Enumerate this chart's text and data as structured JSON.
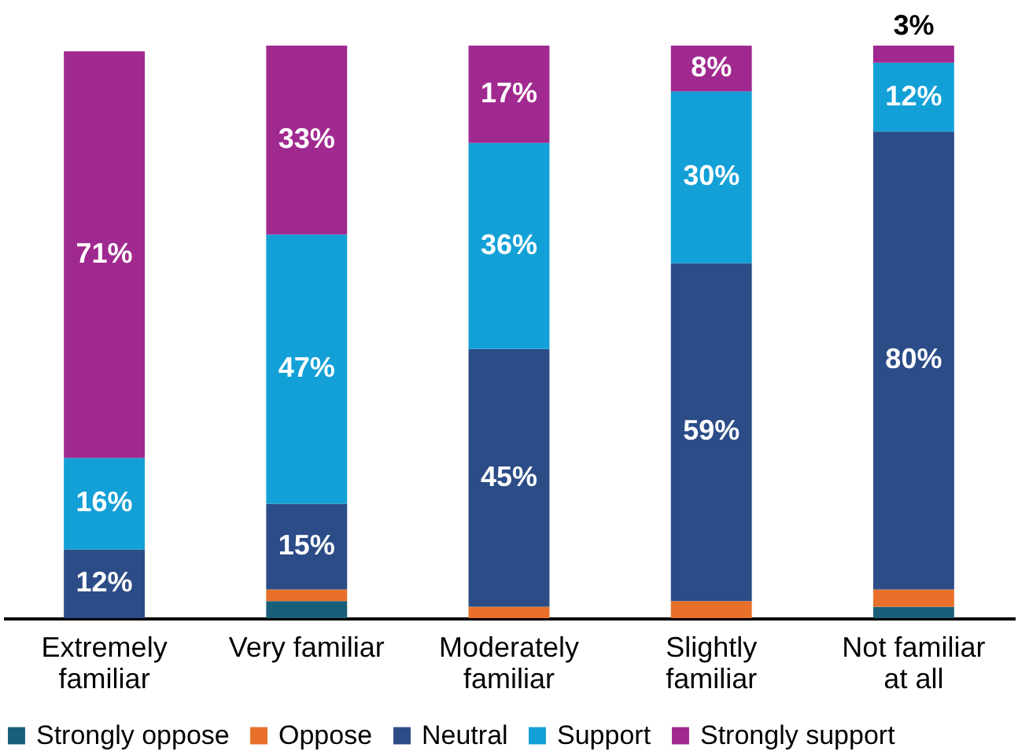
{
  "chart_data": {
    "type": "bar",
    "stacked": true,
    "categories": [
      "Extremely familiar",
      "Very familiar",
      "Moderately familiar",
      "Slightly familiar",
      "Not familiar at all"
    ],
    "series": [
      {
        "name": "Strongly oppose",
        "color": "#1a5f7a",
        "values": [
          0,
          3,
          0,
          0,
          2
        ],
        "value_labels": [
          null,
          null,
          null,
          null,
          null
        ]
      },
      {
        "name": "Oppose",
        "color": "#e8702a",
        "values": [
          0,
          2,
          2,
          3,
          3
        ],
        "value_labels": [
          null,
          null,
          null,
          null,
          null
        ]
      },
      {
        "name": "Neutral",
        "color": "#2b4c87",
        "values": [
          12,
          15,
          45,
          59,
          80
        ],
        "value_labels": [
          "12%",
          "15%",
          "45%",
          "59%",
          "80%"
        ]
      },
      {
        "name": "Support",
        "color": "#12a0d7",
        "values": [
          16,
          47,
          36,
          30,
          12
        ],
        "value_labels": [
          "16%",
          "47%",
          "36%",
          "30%",
          "12%"
        ]
      },
      {
        "name": "Strongly support",
        "color": "#a0298f",
        "values": [
          71,
          33,
          17,
          8,
          3
        ],
        "value_labels": [
          "71%",
          "33%",
          "17%",
          "8%",
          "3%"
        ]
      }
    ],
    "legend": "bottom",
    "grid": false,
    "tick_labels": "x"
  }
}
